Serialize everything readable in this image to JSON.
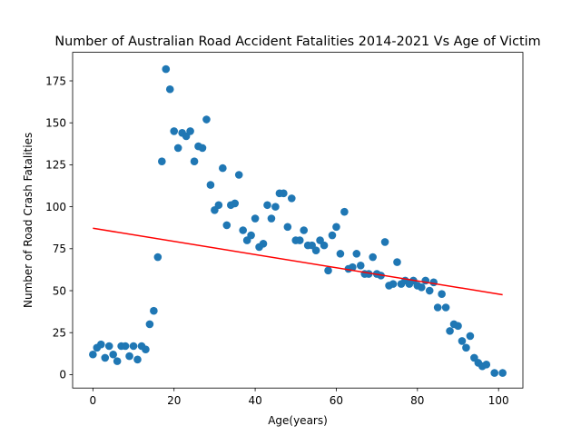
{
  "chart_data": {
    "type": "scatter",
    "title": "Number of Australian Road Accident Fatalities 2014-2021 Vs Age of Victim",
    "xlabel": "Age(years)",
    "ylabel": "Number of Road Crash Fatalities",
    "xlim": [
      -5,
      106
    ],
    "ylim": [
      -8,
      192
    ],
    "xticks": [
      0,
      20,
      40,
      60,
      80,
      100
    ],
    "yticks": [
      0,
      25,
      50,
      75,
      100,
      125,
      150,
      175
    ],
    "grid": false,
    "colors": {
      "points": "#1f77b4",
      "trendline": "#ff0000"
    },
    "series": [
      {
        "points": [
          [
            0,
            12
          ],
          [
            1,
            16
          ],
          [
            2,
            18
          ],
          [
            3,
            10
          ],
          [
            4,
            17
          ],
          [
            5,
            12
          ],
          [
            6,
            8
          ],
          [
            7,
            17
          ],
          [
            8,
            17
          ],
          [
            9,
            11
          ],
          [
            10,
            17
          ],
          [
            11,
            9
          ],
          [
            12,
            17
          ],
          [
            13,
            15
          ],
          [
            14,
            30
          ],
          [
            15,
            38
          ],
          [
            16,
            70
          ],
          [
            17,
            127
          ],
          [
            18,
            182
          ],
          [
            19,
            170
          ],
          [
            20,
            145
          ],
          [
            21,
            135
          ],
          [
            22,
            144
          ],
          [
            23,
            142
          ],
          [
            24,
            145
          ],
          [
            25,
            127
          ],
          [
            26,
            136
          ],
          [
            27,
            135
          ],
          [
            28,
            152
          ],
          [
            29,
            113
          ],
          [
            30,
            98
          ],
          [
            31,
            101
          ],
          [
            32,
            123
          ],
          [
            33,
            89
          ],
          [
            34,
            101
          ],
          [
            35,
            102
          ],
          [
            36,
            119
          ],
          [
            37,
            86
          ],
          [
            38,
            80
          ],
          [
            39,
            83
          ],
          [
            40,
            93
          ],
          [
            41,
            76
          ],
          [
            42,
            78
          ],
          [
            43,
            101
          ],
          [
            44,
            93
          ],
          [
            45,
            100
          ],
          [
            46,
            108
          ],
          [
            47,
            108
          ],
          [
            48,
            88
          ],
          [
            49,
            105
          ],
          [
            50,
            80
          ],
          [
            51,
            80
          ],
          [
            52,
            86
          ],
          [
            53,
            77
          ],
          [
            54,
            77
          ],
          [
            55,
            74
          ],
          [
            56,
            80
          ],
          [
            57,
            77
          ],
          [
            58,
            62
          ],
          [
            59,
            83
          ],
          [
            60,
            88
          ],
          [
            61,
            72
          ],
          [
            62,
            97
          ],
          [
            63,
            63
          ],
          [
            64,
            64
          ],
          [
            65,
            72
          ],
          [
            66,
            65
          ],
          [
            67,
            60
          ],
          [
            68,
            60
          ],
          [
            69,
            70
          ],
          [
            70,
            60
          ],
          [
            71,
            59
          ],
          [
            72,
            79
          ],
          [
            73,
            53
          ],
          [
            74,
            54
          ],
          [
            75,
            67
          ],
          [
            76,
            54
          ],
          [
            77,
            56
          ],
          [
            78,
            54
          ],
          [
            79,
            56
          ],
          [
            80,
            53
          ],
          [
            81,
            52
          ],
          [
            82,
            56
          ],
          [
            83,
            50
          ],
          [
            84,
            55
          ],
          [
            85,
            40
          ],
          [
            86,
            48
          ],
          [
            87,
            40
          ],
          [
            88,
            26
          ],
          [
            89,
            30
          ],
          [
            90,
            29
          ],
          [
            91,
            20
          ],
          [
            92,
            16
          ],
          [
            93,
            23
          ],
          [
            94,
            10
          ],
          [
            95,
            7
          ],
          [
            96,
            5
          ],
          [
            97,
            6
          ],
          [
            99,
            1
          ],
          [
            101,
            1
          ]
        ]
      }
    ],
    "trendline": {
      "x": [
        0,
        101
      ],
      "y": [
        87.2,
        47.6
      ]
    }
  }
}
